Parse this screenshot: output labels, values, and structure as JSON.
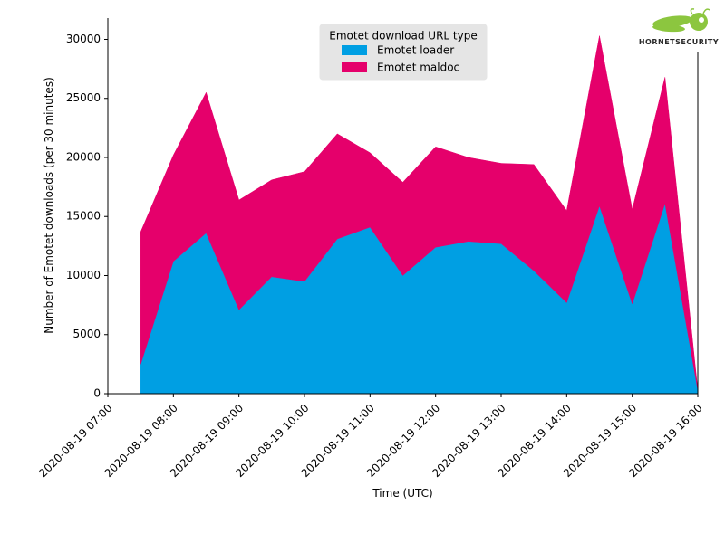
{
  "chart_data": {
    "type": "area",
    "stacked": true,
    "title": "",
    "xlabel": "Time (UTC)",
    "ylabel": "Number of Emotet downloads (per 30 minutes)",
    "xlim": [
      "2020-08-19 07:00",
      "2020-08-19 16:00"
    ],
    "ylim": [
      0,
      31800
    ],
    "x_ticks": [
      "2020-08-19 07:00",
      "2020-08-19 08:00",
      "2020-08-19 09:00",
      "2020-08-19 10:00",
      "2020-08-19 11:00",
      "2020-08-19 12:00",
      "2020-08-19 13:00",
      "2020-08-19 14:00",
      "2020-08-19 15:00",
      "2020-08-19 16:00"
    ],
    "y_ticks": [
      0,
      5000,
      10000,
      15000,
      20000,
      25000,
      30000
    ],
    "x": [
      "2020-08-19 07:30",
      "2020-08-19 08:00",
      "2020-08-19 08:30",
      "2020-08-19 09:00",
      "2020-08-19 09:30",
      "2020-08-19 10:00",
      "2020-08-19 10:30",
      "2020-08-19 11:00",
      "2020-08-19 11:30",
      "2020-08-19 12:00",
      "2020-08-19 12:30",
      "2020-08-19 13:00",
      "2020-08-19 13:30",
      "2020-08-19 14:00",
      "2020-08-19 14:30",
      "2020-08-19 15:00",
      "2020-08-19 15:30",
      "2020-08-19 16:00"
    ],
    "series": [
      {
        "name": "Emotet loader",
        "color": "#009fe3",
        "values": [
          2500,
          11200,
          13600,
          7100,
          9900,
          9500,
          13100,
          14100,
          10000,
          12400,
          12900,
          12700,
          10400,
          7700,
          15900,
          7600,
          16100,
          300
        ]
      },
      {
        "name": "Emotet maldoc",
        "color": "#e5006b",
        "values": [
          11200,
          9000,
          11900,
          9300,
          8200,
          9300,
          8900,
          6300,
          7900,
          8500,
          7100,
          6800,
          9000,
          7800,
          14400,
          8000,
          10700,
          0
        ]
      }
    ],
    "legend": {
      "title": "Emotet download URL type",
      "position": "top-center"
    },
    "grid": false
  },
  "logo": {
    "text": "HORNETSECURITY",
    "color": "#8cc63f"
  }
}
